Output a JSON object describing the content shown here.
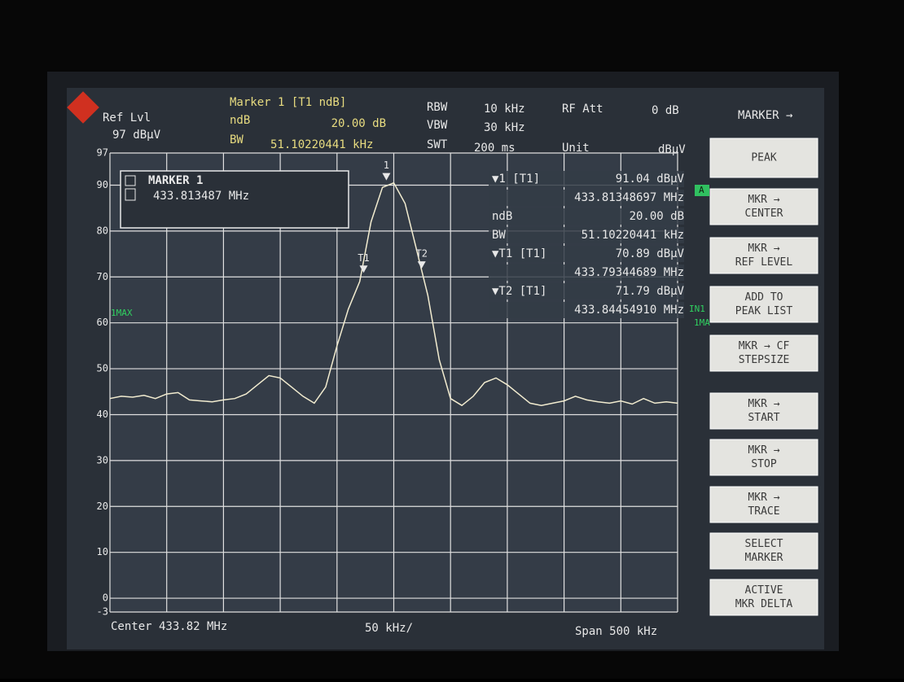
{
  "header": {
    "ref_lvl": "Ref Lvl",
    "ref_value": "97 dBµV",
    "marker_title": "Marker 1 [T1 ndB]",
    "ndb_label": "ndB",
    "ndb_value": "20.00 dB",
    "bw_label": "BW",
    "bw_value": "51.10220441 kHz",
    "rbw_label": "RBW",
    "rbw_value": "10 kHz",
    "vbw_label": "VBW",
    "vbw_value": "30 kHz",
    "swt_label": "SWT",
    "swt_value": "200 ms",
    "rf_att_label": "RF Att",
    "rf_att_value": "0 dB",
    "unit_label": "Unit",
    "unit_value": "dBµV"
  },
  "softkey_title": "MARKER →",
  "softkeys": [
    [
      "PEAK"
    ],
    [
      "MKR →",
      "CENTER"
    ],
    [
      "MKR →",
      "REF LEVEL"
    ],
    [
      "ADD TO",
      "PEAK LIST"
    ],
    [
      "MKR → CF",
      "STEPSIZE"
    ],
    [
      "MKR →",
      "START"
    ],
    [
      "MKR →",
      "STOP"
    ],
    [
      "MKR →",
      "TRACE"
    ],
    [
      "SELECT",
      "MARKER"
    ],
    [
      "ACTIVE",
      "MKR DELTA"
    ]
  ],
  "marker_box": {
    "title": "MARKER 1",
    "value": "433.813487 MHz"
  },
  "marker_table": [
    [
      "▼1 [T1]",
      "91.04 dBµV"
    ],
    [
      "433.81348697 MHz"
    ],
    [
      "ndB",
      "20.00 dB"
    ],
    [
      "BW",
      "51.10220441 kHz"
    ],
    [
      "▼T1 [T1]",
      "70.89 dBµV"
    ],
    [
      "433.79344689 MHz"
    ],
    [
      "▼T2 [T1]",
      "71.79 dBµV"
    ],
    [
      "433.84454910 MHz"
    ]
  ],
  "side_labels": {
    "trace": "1MAX",
    "a": "A",
    "in1": "IN1",
    "ma": "1MA"
  },
  "footer": {
    "center": "Center 433.82 MHz",
    "div": "50 kHz/",
    "span": "Span 500 kHz"
  },
  "chart_data": {
    "type": "line",
    "x": [
      433.57,
      433.58,
      433.59,
      433.6,
      433.61,
      433.62,
      433.63,
      433.64,
      433.65,
      433.66,
      433.67,
      433.68,
      433.69,
      433.7,
      433.71,
      433.72,
      433.73,
      433.74,
      433.75,
      433.76,
      433.77,
      433.78,
      433.79,
      433.8,
      433.81,
      433.82,
      433.83,
      433.84,
      433.85,
      433.86,
      433.87,
      433.88,
      433.89,
      433.9,
      433.91,
      433.92,
      433.93,
      433.94,
      433.95,
      433.96,
      433.97,
      433.98,
      433.99,
      434.0,
      434.01,
      434.02,
      434.03,
      434.04,
      434.05,
      434.06,
      434.07
    ],
    "series": [
      {
        "name": "1MAX",
        "color": "#f2ecd0",
        "values": [
          43.5,
          44,
          43.8,
          44.2,
          43.5,
          44.5,
          44.8,
          43.2,
          43.0,
          42.8,
          43.2,
          43.5,
          44.5,
          46.5,
          48.5,
          48.0,
          46.0,
          44.0,
          42.5,
          46,
          55,
          63,
          69,
          82,
          89.5,
          90.5,
          86,
          76,
          66,
          52,
          43.5,
          42,
          44,
          47,
          48,
          46.5,
          44.5,
          42.5,
          42,
          42.5,
          43,
          44,
          43.2,
          42.8,
          42.5,
          43,
          42.3,
          43.5,
          42.5,
          42.8,
          42.5
        ]
      }
    ],
    "markers": [
      {
        "name": "1",
        "x": 433.813487,
        "y": 91.04
      },
      {
        "name": "T1",
        "x": 433.79344689,
        "y": 70.89
      },
      {
        "name": "T2",
        "x": 433.8445491,
        "y": 71.79
      }
    ],
    "xlim": [
      433.57,
      434.07
    ],
    "ylim": [
      -3,
      97
    ],
    "yticks": [
      -3,
      0,
      10,
      20,
      30,
      40,
      50,
      60,
      70,
      80,
      90,
      97
    ],
    "grid": true
  }
}
